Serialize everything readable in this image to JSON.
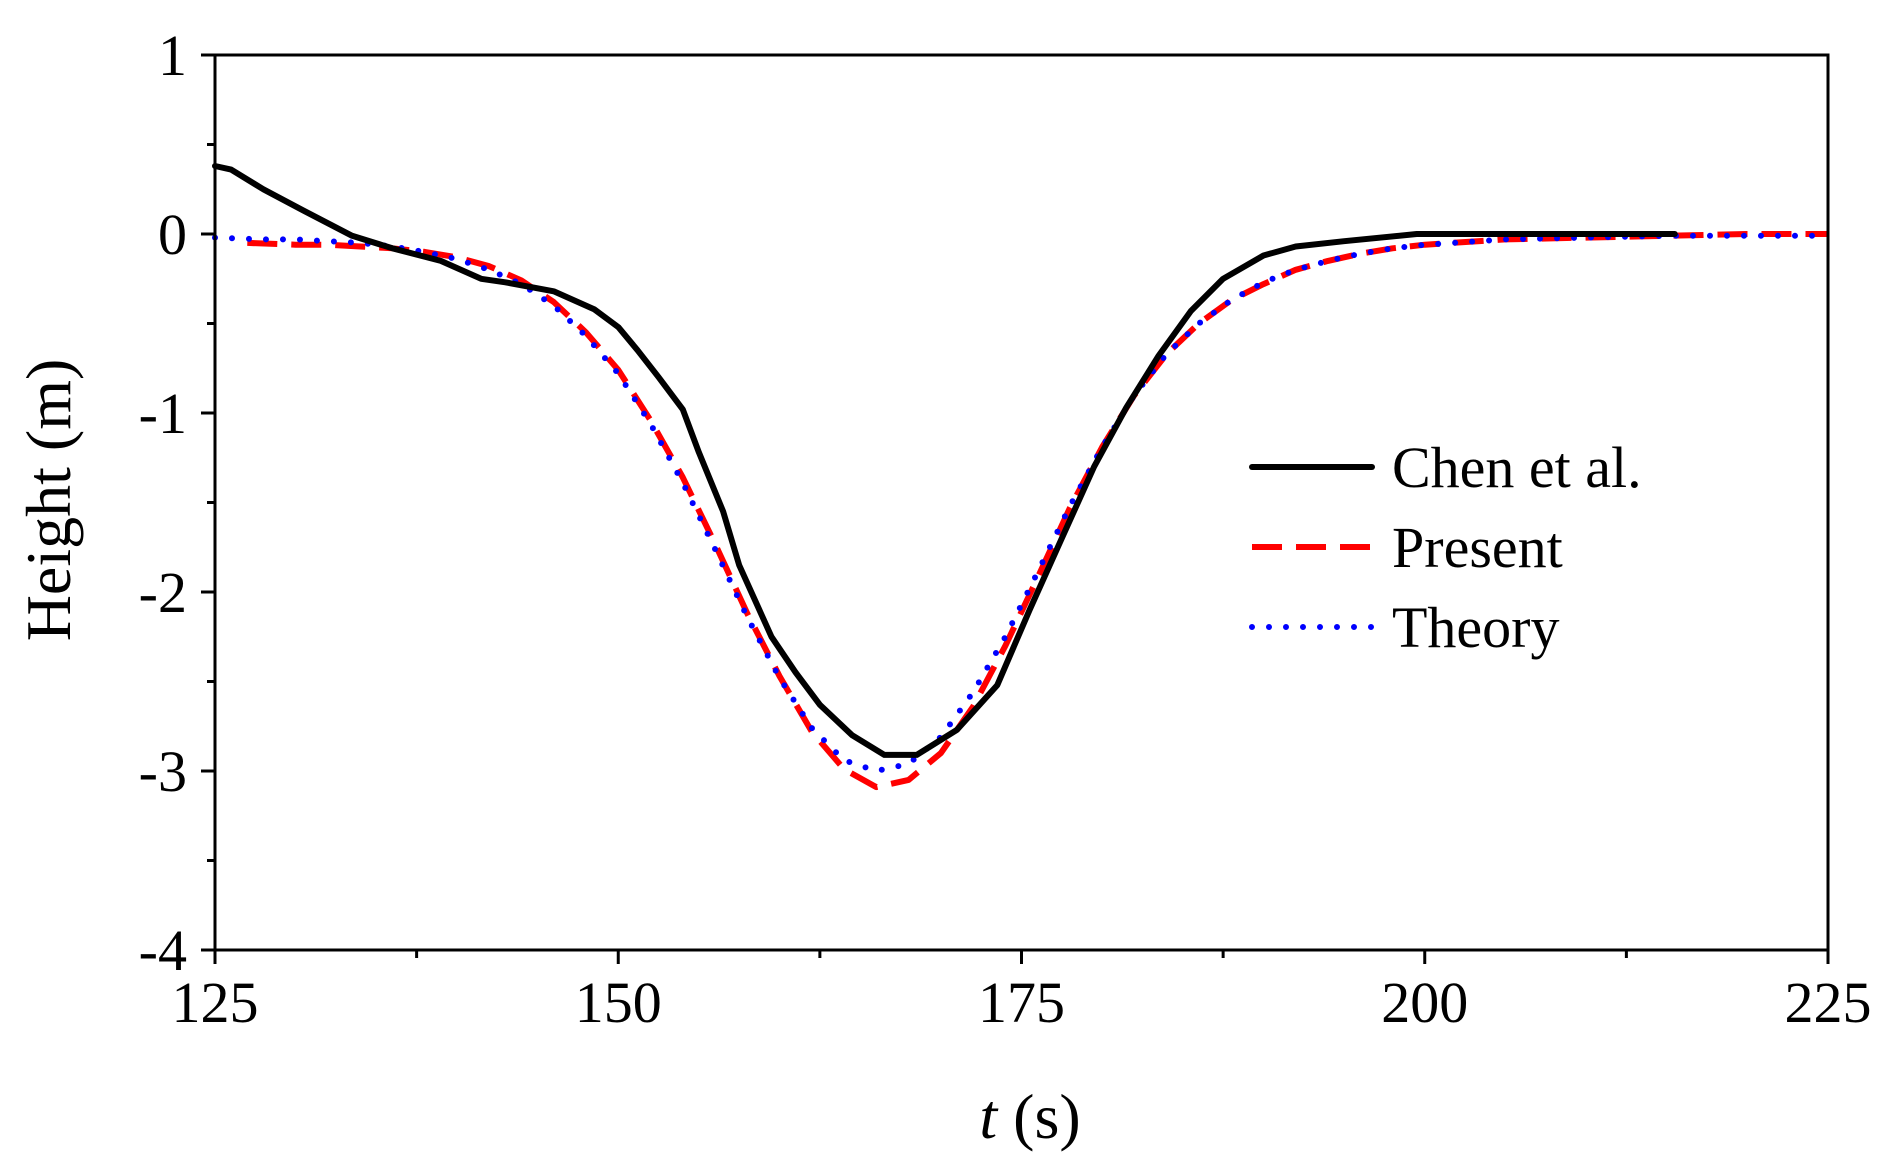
{
  "chart_data": {
    "type": "line",
    "title": "",
    "xlabel_italic": "t",
    "xlabel_rest": " (s)",
    "ylabel": "Height (m)",
    "xlim": [
      125,
      225
    ],
    "ylim": [
      -4,
      1
    ],
    "xticks": [
      125,
      150,
      175,
      200,
      225
    ],
    "xtick_labels": [
      "125",
      "150",
      "175",
      "200",
      "225"
    ],
    "yticks": [
      1,
      0,
      -1,
      -2,
      -3,
      -4
    ],
    "ytick_labels": [
      "1",
      "0",
      "-1",
      "-2",
      "-3",
      "-4"
    ],
    "grid": false,
    "legend_position": "right",
    "series": [
      {
        "name": "Chen et al.",
        "color": "#000000",
        "style": "solid",
        "x": [
          125,
          126,
          128,
          130.5,
          133.5,
          136,
          139,
          141.5,
          143,
          146,
          148.5,
          150,
          151.2,
          152.5,
          154,
          155,
          156.5,
          157.5,
          159.5,
          161,
          162.5,
          164.5,
          166.5,
          168.5,
          171,
          173.5,
          175.5,
          177.5,
          179.5,
          181.5,
          183.5,
          185.5,
          187.5,
          190,
          192,
          195,
          199.5,
          205,
          210,
          215.5
        ],
        "y": [
          0.38,
          0.36,
          0.25,
          0.13,
          -0.01,
          -0.08,
          -0.15,
          -0.25,
          -0.27,
          -0.32,
          -0.42,
          -0.52,
          -0.65,
          -0.8,
          -0.98,
          -1.22,
          -1.55,
          -1.85,
          -2.25,
          -2.45,
          -2.63,
          -2.8,
          -2.91,
          -2.91,
          -2.77,
          -2.52,
          -2.1,
          -1.7,
          -1.3,
          -0.97,
          -0.68,
          -0.43,
          -0.25,
          -0.12,
          -0.07,
          -0.04,
          0.0,
          0.0,
          0.0,
          0.0
        ]
      },
      {
        "name": "Present",
        "color": "#ff0000",
        "style": "dashed",
        "x": [
          127,
          130,
          132,
          134,
          136,
          138,
          140,
          142,
          144,
          146,
          148,
          150,
          152,
          154,
          156,
          158,
          160,
          162,
          164,
          166,
          168,
          170,
          172,
          174,
          176,
          178,
          180,
          182,
          184,
          186,
          188,
          190,
          192,
          194,
          196,
          198,
          200,
          205,
          210,
          215,
          220,
          225
        ],
        "y": [
          -0.05,
          -0.06,
          -0.06,
          -0.07,
          -0.08,
          -0.1,
          -0.13,
          -0.18,
          -0.26,
          -0.38,
          -0.55,
          -0.76,
          -1.04,
          -1.36,
          -1.73,
          -2.12,
          -2.47,
          -2.78,
          -2.99,
          -3.09,
          -3.05,
          -2.9,
          -2.64,
          -2.3,
          -1.92,
          -1.53,
          -1.19,
          -0.9,
          -0.67,
          -0.5,
          -0.37,
          -0.28,
          -0.2,
          -0.15,
          -0.11,
          -0.08,
          -0.06,
          -0.03,
          -0.02,
          -0.01,
          0.0,
          0.0
        ]
      },
      {
        "name": "Theory",
        "color": "#0000ff",
        "style": "dotted",
        "x": [
          125,
          128,
          130,
          132,
          134,
          136,
          138,
          140,
          142,
          144,
          146,
          148,
          150,
          152,
          154,
          156,
          158,
          160,
          162,
          164,
          166,
          168,
          170,
          172,
          174,
          176,
          178,
          180,
          182,
          184,
          186,
          188,
          190,
          192,
          194,
          196,
          198,
          200,
          205,
          210,
          215,
          220,
          225
        ],
        "y": [
          -0.02,
          -0.03,
          -0.03,
          -0.04,
          -0.05,
          -0.07,
          -0.1,
          -0.14,
          -0.2,
          -0.28,
          -0.4,
          -0.57,
          -0.78,
          -1.06,
          -1.39,
          -1.76,
          -2.14,
          -2.48,
          -2.76,
          -2.94,
          -3.0,
          -2.96,
          -2.81,
          -2.56,
          -2.25,
          -1.89,
          -1.52,
          -1.19,
          -0.9,
          -0.67,
          -0.5,
          -0.37,
          -0.27,
          -0.2,
          -0.15,
          -0.11,
          -0.08,
          -0.06,
          -0.03,
          -0.02,
          -0.01,
          -0.01,
          -0.01
        ]
      }
    ]
  }
}
